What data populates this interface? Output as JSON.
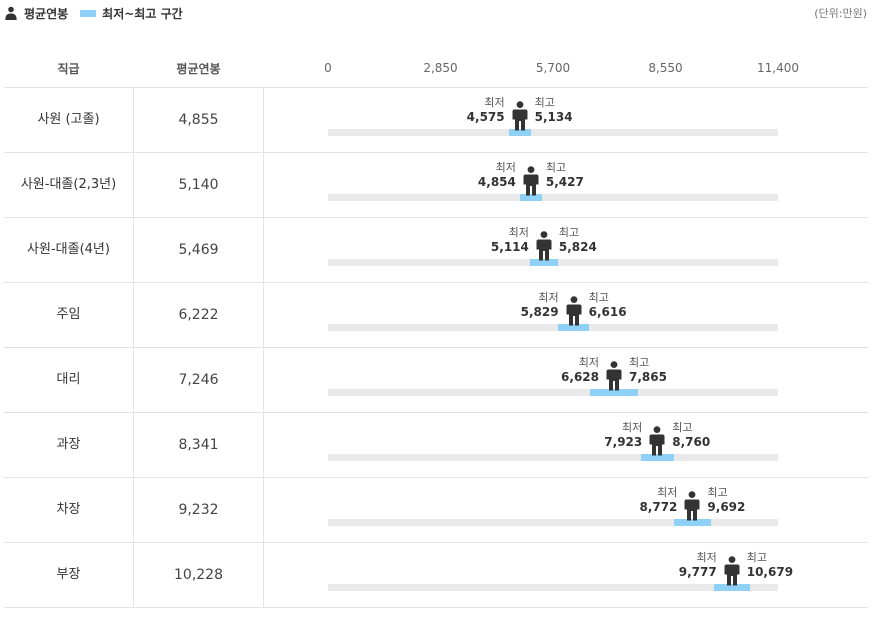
{
  "legend": {
    "avg_label": "평균연봉",
    "range_label": "최저~최고 구간",
    "avg_icon": "person-icon"
  },
  "unit": "(단위:만원)",
  "headers": {
    "position": "직급",
    "average": "평균연봉"
  },
  "colors": {
    "range": "#8fd0f7",
    "track": "#e9e9e9",
    "person": "#333333"
  },
  "chart_data": {
    "type": "range-dot",
    "xlim": [
      0,
      11400
    ],
    "ticks": [
      {
        "value": 0,
        "label": "0"
      },
      {
        "value": 2850,
        "label": "2,850"
      },
      {
        "value": 5700,
        "label": "5,700"
      },
      {
        "value": 8550,
        "label": "8,550"
      },
      {
        "value": 11400,
        "label": "11,400"
      }
    ],
    "min_label": "최저",
    "max_label": "최고",
    "rows": [
      {
        "position": "사원 (고졸)",
        "avg": 4855,
        "avg_label": "4,855",
        "min": 4575,
        "min_label": "4,575",
        "max": 5134,
        "max_label": "5,134"
      },
      {
        "position": "사원-대졸(2,3년)",
        "avg": 5140,
        "avg_label": "5,140",
        "min": 4854,
        "min_label": "4,854",
        "max": 5427,
        "max_label": "5,427"
      },
      {
        "position": "사원-대졸(4년)",
        "avg": 5469,
        "avg_label": "5,469",
        "min": 5114,
        "min_label": "5,114",
        "max": 5824,
        "max_label": "5,824"
      },
      {
        "position": "주임",
        "avg": 6222,
        "avg_label": "6,222",
        "min": 5829,
        "min_label": "5,829",
        "max": 6616,
        "max_label": "6,616"
      },
      {
        "position": "대리",
        "avg": 7246,
        "avg_label": "7,246",
        "min": 6628,
        "min_label": "6,628",
        "max": 7865,
        "max_label": "7,865"
      },
      {
        "position": "과장",
        "avg": 8341,
        "avg_label": "8,341",
        "min": 7923,
        "min_label": "7,923",
        "max": 8760,
        "max_label": "8,760"
      },
      {
        "position": "차장",
        "avg": 9232,
        "avg_label": "9,232",
        "min": 8772,
        "min_label": "8,772",
        "max": 9692,
        "max_label": "9,692"
      },
      {
        "position": "부장",
        "avg": 10228,
        "avg_label": "10,228",
        "min": 9777,
        "min_label": "9,777",
        "max": 10679,
        "max_label": "10,679"
      }
    ]
  }
}
